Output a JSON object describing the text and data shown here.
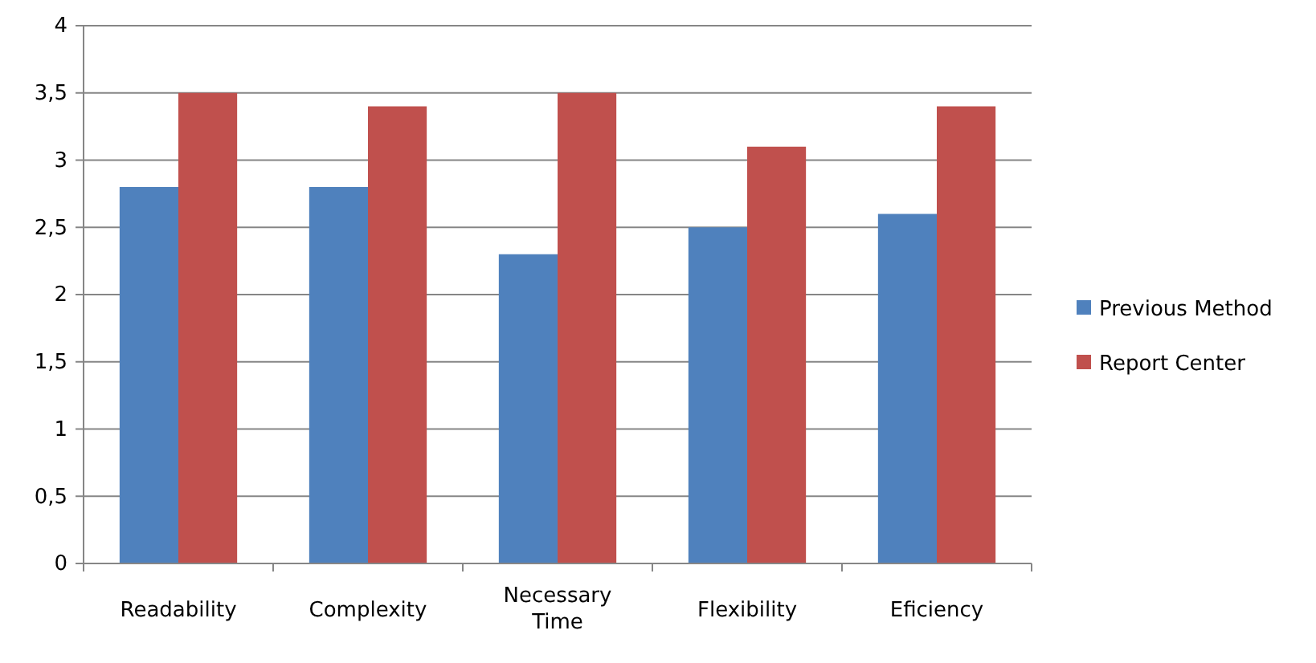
{
  "chart_data": {
    "type": "bar",
    "categories": [
      "Readability",
      "Complexity",
      "Necessary Time",
      "Flexibility",
      "Eficiency"
    ],
    "series": [
      {
        "name": "Previous Method",
        "color": "#4f81bd",
        "values": [
          2.8,
          2.8,
          2.3,
          2.5,
          2.6
        ]
      },
      {
        "name": "Report Center",
        "color": "#c0504d",
        "values": [
          3.5,
          3.4,
          3.5,
          3.1,
          3.4
        ]
      }
    ],
    "ylim": [
      0,
      4
    ],
    "yticks": [
      0,
      {
        "value": 0.5,
        "label": "0,5"
      },
      1,
      {
        "value": 1.5,
        "label": "1,5"
      },
      2,
      {
        "value": 2.5,
        "label": "2,5"
      },
      3,
      {
        "value": 3.5,
        "label": "3,5"
      },
      4
    ],
    "grid": "y",
    "legend": "right"
  }
}
